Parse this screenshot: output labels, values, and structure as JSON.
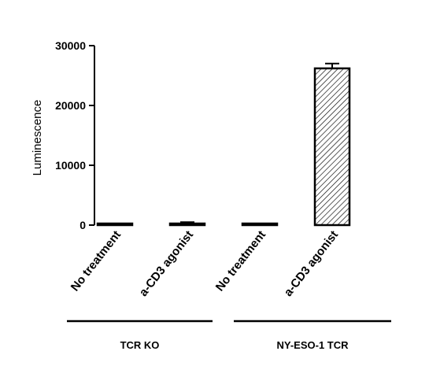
{
  "chart_data": {
    "type": "bar",
    "ylabel": "Luminescence",
    "ylim": [
      0,
      30000
    ],
    "yticks": [
      0,
      10000,
      20000,
      30000
    ],
    "categories": [
      "No treatment",
      "a-CD3 agonist",
      "No treatment",
      "a-CD3 agonist"
    ],
    "values": [
      100,
      250,
      50,
      26200
    ],
    "errors": [
      60,
      250,
      40,
      800
    ],
    "patterns": [
      "solid",
      "solid",
      "solid",
      "hatched"
    ],
    "groups": [
      {
        "label": "TCR KO",
        "category_indices": [
          0,
          1
        ]
      },
      {
        "label": "NY-ESO-1 TCR",
        "category_indices": [
          2,
          3
        ]
      }
    ]
  },
  "colors": {
    "bar_stroke": "#000000",
    "hatch": "#000000",
    "axis": "#000000"
  }
}
